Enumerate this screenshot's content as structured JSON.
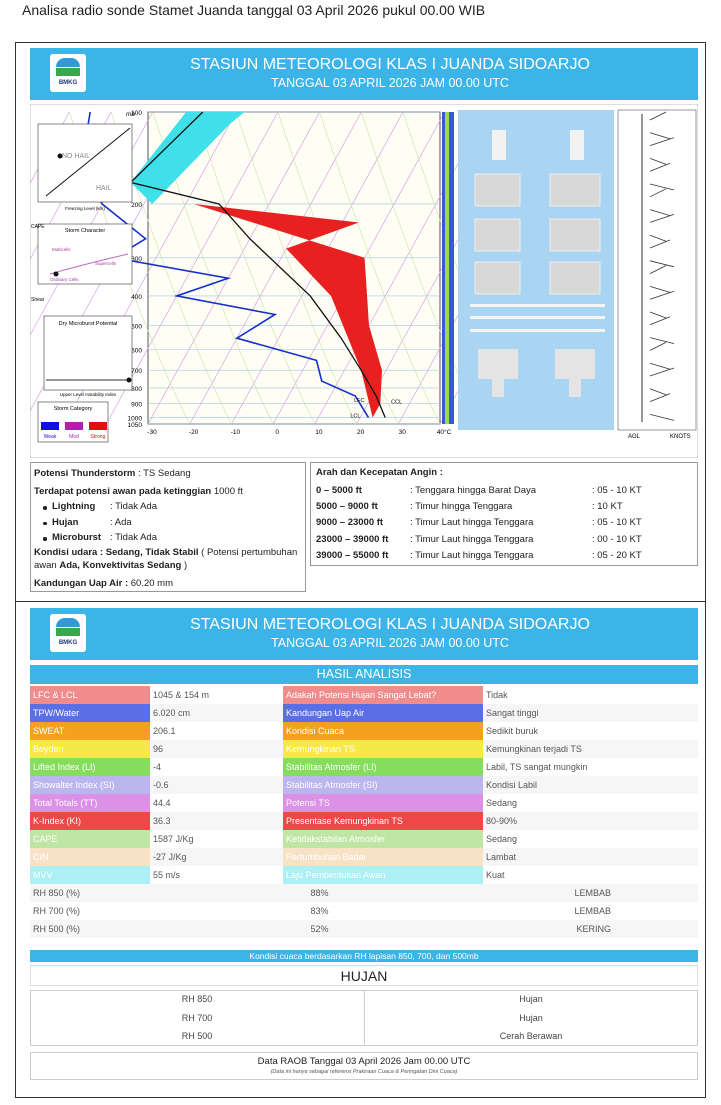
{
  "caption": "Analisa radio sonde Stamet Juanda tanggal 03 April 2026 pukul 00.00 WIB",
  "panel1": {
    "header": {
      "title": "STASIUN METEOROLOGI KLAS I JUANDA SIDOARJO",
      "subtitle": "TANGGAL 03 APRIL 2026 JAM 00.00 UTC",
      "logo": "BMKG"
    },
    "skewt": {
      "pressure_unit": "mb",
      "pressure_labels": [
        100,
        200,
        300,
        400,
        500,
        600,
        700,
        800,
        900,
        1000,
        1050
      ],
      "temperature_labels": [
        "-30",
        "-20",
        "-10",
        "0",
        "10",
        "20",
        "30",
        "40°C"
      ],
      "levels": [
        "LFC",
        "LCL",
        "CCL"
      ],
      "hail": {
        "no_hail": "NO HAIL",
        "hail": "HAIL",
        "x_label": "Freezing Level (km)"
      },
      "storm": {
        "title": "Storm Character",
        "y_label": "CAPE",
        "multicells": "Multicells",
        "supercells": "Supercells",
        "ordinary": "Ordinary Cells",
        "x_label": "Shear"
      },
      "microburst": {
        "title": "Dry Microburst Potential",
        "x_label": "Upper Level Instability Index"
      },
      "category": {
        "title": "Storm Category",
        "weak": "Weak",
        "mod": "Mod",
        "strong": "Strong"
      },
      "wind_axis": {
        "left": "AGL",
        "right": "KNOTS"
      }
    },
    "thunderstorm": {
      "potential": {
        "label": "Potensi Thunderstorm",
        "value": ": TS Sedang"
      },
      "cloud": {
        "label": "Terdapat potensi awan pada ketinggian",
        "value": "1000 ft"
      },
      "items": [
        {
          "label": "Lightning",
          "value": ": Tidak Ada"
        },
        {
          "label": "Hujan",
          "value": ": Ada"
        },
        {
          "label": "Microburst",
          "value": ": Tidak Ada"
        }
      ],
      "condition": {
        "label": "Kondisi udara : Sedang, Tidak Stabil",
        "detail": "( Potensi pertumbuhan awan",
        "emphasis": "Ada, Konvektivitas Sedang",
        "close": ")"
      },
      "vapor": {
        "label": "Kandungan Uap Air :",
        "value": "60.20 mm"
      }
    },
    "wind": {
      "title": "Arah dan Kecepatan Angin :",
      "rows": [
        [
          "0 – 5000 ft",
          ": Tenggara hingga Barat Daya",
          ": 05 - 10 KT"
        ],
        [
          "5000 – 9000 ft",
          ": Timur hingga Tenggara",
          ": 10 KT"
        ],
        [
          "9000 – 23000 ft",
          ": Timur Laut hingga Tenggara",
          ": 05 - 10 KT"
        ],
        [
          "23000 – 39000 ft",
          ": Timur Laut hingga Tenggara",
          ": 00 - 10 KT"
        ],
        [
          "39000 – 55000 ft",
          ": Timur Laut hingga Tenggara",
          ": 05 - 20 KT"
        ]
      ]
    }
  },
  "panel2": {
    "header": {
      "title": "STASIUN METEOROLOGI KLAS I JUANDA SIDOARJO",
      "subtitle": "TANGGAL 03 APRIL 2026 JAM 00.00 UTC",
      "logo": "BMKG"
    },
    "analysis_title": "HASIL ANALISIS",
    "rows": [
      {
        "label": "LFC & LCL",
        "value": "1045 & 154 m",
        "param": "Adakah Potensi Hujan Sangat Lebat?",
        "result": "Tidak",
        "color": "#f08c8c"
      },
      {
        "label": "TPW/Water",
        "value": "6.020 cm",
        "param": "Kandungan Uap Air",
        "result": "Sangat tinggi",
        "color": "#5a6ee6"
      },
      {
        "label": "SWEAT",
        "value": "206.1",
        "param": "Kondisi Cuaca",
        "result": "Sedikit buruk",
        "color": "#f5a020"
      },
      {
        "label": "Boyden",
        "value": "96",
        "param": "Kemungkinan TS",
        "result": "Kemungkinan terjadi TS",
        "color": "#f7e84a"
      },
      {
        "label": "Lifted Index (LI)",
        "value": "-4",
        "param": "Stabilitas Atmosfer (LI)",
        "result": "Labil, TS sangat mungkin",
        "color": "#86dc5c"
      },
      {
        "label": "Showalter Index (SI)",
        "value": "-0.6",
        "param": "Stabilitas Atmosfer (SI)",
        "result": "Kondisi Labil",
        "color": "#bdb6ee"
      },
      {
        "label": "Total Totals (TT)",
        "value": "44.4",
        "param": "Potensi TS",
        "result": "Sedang",
        "color": "#dc90e6"
      },
      {
        "label": "K-Index (KI)",
        "value": "36.3",
        "param": "Presentase Kemungkinan TS",
        "result": "80-90%",
        "color": "#f04848"
      },
      {
        "label": "CAPE",
        "value": "1587 J/Kg",
        "param": "Ketidakstabilan Atmosfer",
        "result": "Sedang",
        "color": "#bfe6a4"
      },
      {
        "label": "CIN",
        "value": "-27 J/Kg",
        "param": "Pertumbuhan Badai",
        "result": "Lambat",
        "color": "#f8e2c6"
      },
      {
        "label": "MVV",
        "value": "55 m/s",
        "param": "Laju Pembentukan Awan",
        "result": "Kuat",
        "color": "#acf0f6"
      }
    ],
    "rh_rows": [
      {
        "label": "RH 850 (%)",
        "value": "88%",
        "status": "LEMBAB"
      },
      {
        "label": "RH 700 (%)",
        "value": "83%",
        "status": "LEMBAB"
      },
      {
        "label": "RH 500 (%)",
        "value": "52%",
        "status": "KERING"
      }
    ],
    "rh_title": "Kondisi cuaca berdasarkan RH lapisan 850, 700, dan 500mb",
    "rain_title": "HUJAN",
    "rain_rows": [
      {
        "label": "RH 850",
        "value": "Hujan"
      },
      {
        "label": "RH 700",
        "value": "Hujan"
      },
      {
        "label": "RH 500",
        "value": "Cerah Berawan"
      }
    ],
    "footer": {
      "title": "Data RAOB Tanggal 03 April 2026 Jam 00.00 UTC",
      "note": "(Data ini hanya sebagai referensi Prakiraan Cuaca & Peringatan Dini Cuaca)"
    }
  }
}
